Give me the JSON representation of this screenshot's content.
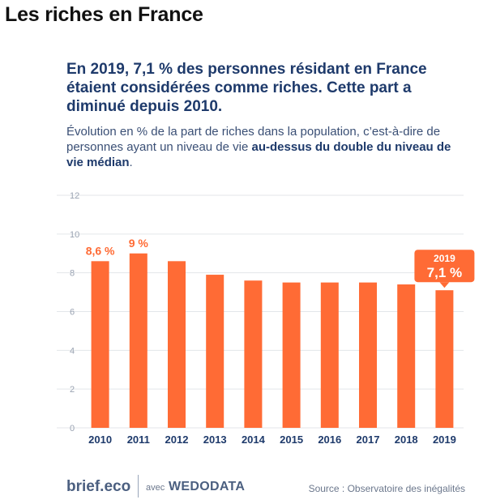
{
  "page_title": "Les riches en France",
  "headline": "En 2019, 7,1 % des personnes résidant en France étaient considérées comme riches. Cette part a diminué depuis 2010.",
  "subtitle_lead": "Évolution en % de la part de riches dans la population, c’est-à-dire de personnes ayant un niveau de vie ",
  "subtitle_bold": "au-dessus du double du niveau de vie médian",
  "subtitle_end": ".",
  "footer": {
    "brand": "brief.eco",
    "avec": "avec",
    "partner": "WEDODATA",
    "source": "Source : Observatoire des inégalités"
  },
  "chart_data": {
    "type": "bar",
    "categories": [
      "2010",
      "2011",
      "2012",
      "2013",
      "2014",
      "2015",
      "2016",
      "2017",
      "2018",
      "2019"
    ],
    "values": [
      8.6,
      9.0,
      8.6,
      7.9,
      7.6,
      7.5,
      7.5,
      7.5,
      7.4,
      7.1
    ],
    "ylim": [
      0,
      12
    ],
    "yticks": [
      0,
      2,
      4,
      6,
      8,
      10,
      12
    ],
    "grid": true,
    "bar_color": "#ff6b35",
    "text_color": "#1e3a6b",
    "grid_color": "#e3e6ea",
    "annotations": [
      {
        "category": "2010",
        "label": "8,6 %"
      },
      {
        "category": "2011",
        "label": "9 %"
      }
    ],
    "callout": {
      "category": "2019",
      "year_label": "2019",
      "value_label": "7,1 %"
    }
  }
}
